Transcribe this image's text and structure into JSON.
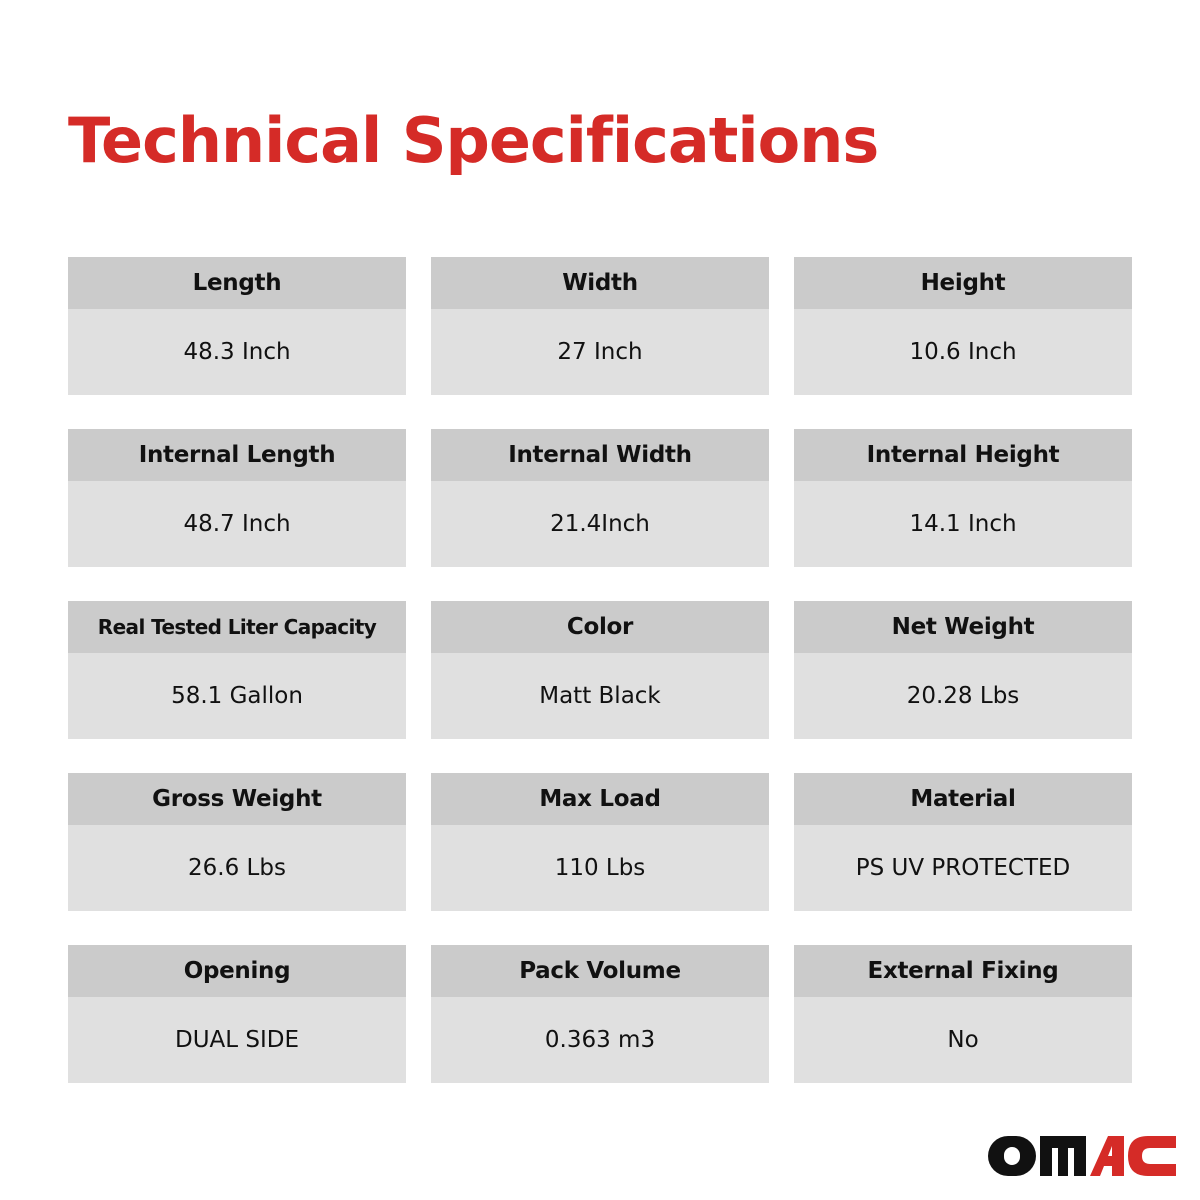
{
  "title": "Technical Specifications",
  "specs": [
    {
      "label": "Length",
      "value": "48.3 Inch"
    },
    {
      "label": "Width",
      "value": "27 Inch"
    },
    {
      "label": "Height",
      "value": "10.6 Inch"
    },
    {
      "label": "Internal Length",
      "value": "48.7 Inch"
    },
    {
      "label": "Internal Width",
      "value": "21.4Inch"
    },
    {
      "label": "Internal Height",
      "value": "14.1 Inch"
    },
    {
      "label": "Real Tested Liter Capacity",
      "value": "58.1 Gallon"
    },
    {
      "label": "Color",
      "value": "Matt Black"
    },
    {
      "label": "Net Weight",
      "value": "20.28 Lbs"
    },
    {
      "label": "Gross Weight",
      "value": "26.6 Lbs"
    },
    {
      "label": "Max Load",
      "value": "110 Lbs"
    },
    {
      "label": "Material",
      "value": "PS UV PROTECTED"
    },
    {
      "label": "Opening",
      "value": "DUAL SIDE"
    },
    {
      "label": "Pack Volume",
      "value": "0.363 m3"
    },
    {
      "label": "External Fixing",
      "value": "No"
    }
  ],
  "logo": "OMAC",
  "colors": {
    "accent": "#d52b27",
    "header_bg": "#cbcbcb",
    "card_bg": "#e0e0e0"
  }
}
